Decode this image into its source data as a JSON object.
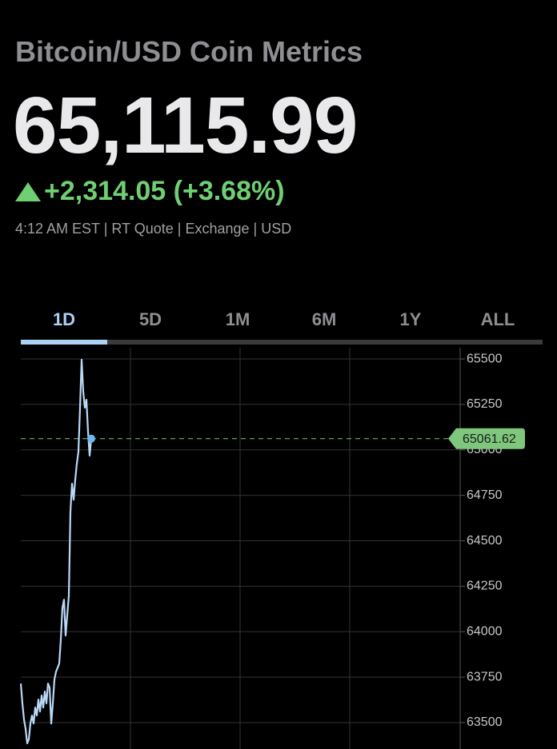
{
  "header": {
    "title": "Bitcoin/USD Coin Metrics",
    "price": "65,115.99",
    "change": "+2,314.05 (+3.68%)",
    "quote_info": "4:12 AM EST | RT Quote | Exchange | USD"
  },
  "tabs": [
    "1D",
    "5D",
    "1M",
    "6M",
    "1Y",
    "ALL"
  ],
  "chart_data": {
    "type": "line",
    "values": [
      63715,
      63606,
      63517,
      63465,
      63386,
      63408,
      63495,
      63539,
      63495,
      63583,
      63539,
      63627,
      63561,
      63649,
      63583,
      63671,
      63606,
      63715,
      63693,
      63495,
      63606,
      63737,
      63780,
      63802,
      63825,
      63957,
      64132,
      64176,
      63979,
      64089,
      64198,
      64660,
      64814,
      64726,
      64836,
      64924,
      64990,
      65232,
      65496,
      65320,
      65232,
      65276,
      65100,
      64968,
      65062
    ],
    "color": "#b9d9f7",
    "ylim": [
      63355,
      65553
    ],
    "yticks": [
      63500,
      63750,
      64000,
      64250,
      64500,
      64750,
      65000,
      65250,
      65500
    ],
    "grid": true,
    "last_price": 65061.62,
    "last_price_color": "#7fc77c"
  }
}
